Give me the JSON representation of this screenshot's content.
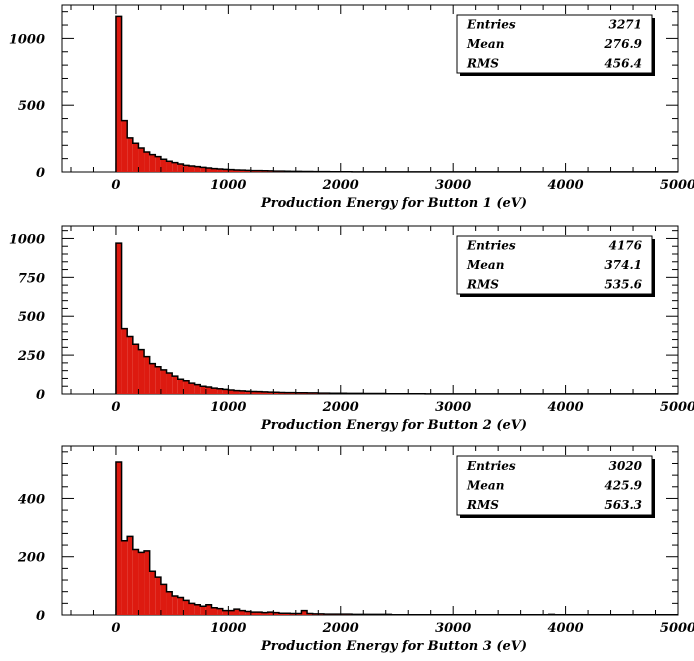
{
  "chart_data": [
    {
      "type": "bar",
      "title": "",
      "xlabel": "Production Energy for Button 1 (eV)",
      "ylabel": "",
      "xlim": [
        -480,
        5000
      ],
      "ylim": [
        0,
        1250
      ],
      "xticks": [
        0,
        1000,
        2000,
        3000,
        4000,
        5000
      ],
      "yticks": [
        0,
        500,
        1000
      ],
      "bin_width": 50,
      "bin_start": 0,
      "values": [
        1165,
        385,
        255,
        215,
        180,
        150,
        130,
        115,
        95,
        80,
        70,
        60,
        50,
        45,
        40,
        35,
        30,
        25,
        22,
        20,
        18,
        15,
        14,
        12,
        10,
        10,
        9,
        8,
        7,
        7,
        6,
        5,
        5,
        4,
        4,
        3,
        3,
        3,
        2,
        2,
        2,
        2,
        1,
        1,
        1,
        1,
        1,
        1,
        1,
        1,
        1,
        1,
        1,
        1,
        1,
        1,
        1,
        1,
        1,
        1,
        1,
        1,
        1,
        1,
        1,
        1,
        1,
        1,
        1,
        1,
        1,
        1,
        1,
        1,
        1,
        1,
        1,
        1,
        1,
        1,
        1,
        1,
        1,
        1,
        1,
        1,
        1,
        1,
        1,
        1,
        1,
        1,
        1,
        1,
        1,
        1,
        1,
        1,
        1,
        1
      ],
      "stats": [
        {
          "label": "Entries",
          "value": "3271"
        },
        {
          "label": "Mean",
          "value": "276.9"
        },
        {
          "label": "RMS",
          "value": "456.4"
        }
      ],
      "fill_color": "#dd1a10",
      "line_color": "#000000"
    },
    {
      "type": "bar",
      "title": "",
      "xlabel": "Production Energy for Button 2 (eV)",
      "ylabel": "",
      "xlim": [
        -480,
        5000
      ],
      "ylim": [
        0,
        1080
      ],
      "xticks": [
        0,
        1000,
        2000,
        3000,
        4000,
        5000
      ],
      "yticks": [
        0,
        250,
        500,
        750,
        1000
      ],
      "bin_width": 50,
      "bin_start": 0,
      "values": [
        970,
        420,
        370,
        320,
        285,
        240,
        195,
        175,
        155,
        135,
        115,
        95,
        85,
        70,
        60,
        50,
        45,
        38,
        34,
        30,
        26,
        22,
        20,
        18,
        16,
        15,
        14,
        12,
        11,
        10,
        9,
        9,
        8,
        8,
        7,
        7,
        6,
        6,
        5,
        5,
        5,
        4,
        4,
        4,
        3,
        3,
        3,
        3,
        2,
        2,
        2,
        2,
        2,
        2,
        2,
        1,
        1,
        1,
        1,
        1,
        1,
        1,
        1,
        1,
        1,
        1,
        1,
        1,
        1,
        1,
        1,
        1,
        1,
        1,
        1,
        1,
        1,
        1,
        1,
        1,
        1,
        1,
        1,
        1,
        1,
        1,
        1,
        1,
        1,
        1,
        1,
        1,
        1,
        1,
        1,
        1,
        1,
        1,
        1,
        1
      ],
      "stats": [
        {
          "label": "Entries",
          "value": "4176"
        },
        {
          "label": "Mean",
          "value": "374.1"
        },
        {
          "label": "RMS",
          "value": "535.6"
        }
      ],
      "fill_color": "#dd1a10",
      "line_color": "#000000"
    },
    {
      "type": "bar",
      "title": "",
      "xlabel": "Production Energy for Button 3 (eV)",
      "ylabel": "",
      "xlim": [
        -480,
        5000
      ],
      "ylim": [
        0,
        580
      ],
      "xticks": [
        0,
        1000,
        2000,
        3000,
        4000,
        5000
      ],
      "yticks": [
        0,
        200,
        400
      ],
      "bin_width": 50,
      "bin_start": 0,
      "values": [
        525,
        255,
        270,
        225,
        215,
        220,
        150,
        130,
        105,
        80,
        65,
        60,
        50,
        40,
        35,
        30,
        35,
        25,
        22,
        15,
        15,
        20,
        15,
        12,
        10,
        10,
        8,
        10,
        8,
        6,
        6,
        5,
        5,
        15,
        5,
        4,
        4,
        3,
        3,
        3,
        3,
        3,
        2,
        2,
        2,
        2,
        2,
        2,
        2,
        1,
        1,
        1,
        1,
        1,
        1,
        1,
        1,
        1,
        1,
        1,
        1,
        1,
        1,
        1,
        1,
        1,
        1,
        1,
        1,
        1,
        1,
        1,
        1,
        1,
        1,
        1,
        1,
        2,
        1,
        1,
        1,
        1,
        1,
        1,
        1,
        1,
        1,
        1,
        1,
        1,
        1,
        1,
        1,
        1,
        1,
        1,
        1,
        1,
        1,
        1
      ],
      "stats": [
        {
          "label": "Entries",
          "value": "3020"
        },
        {
          "label": "Mean",
          "value": "425.9"
        },
        {
          "label": "RMS",
          "value": "563.3"
        }
      ],
      "fill_color": "#dd1a10",
      "line_color": "#000000"
    }
  ]
}
